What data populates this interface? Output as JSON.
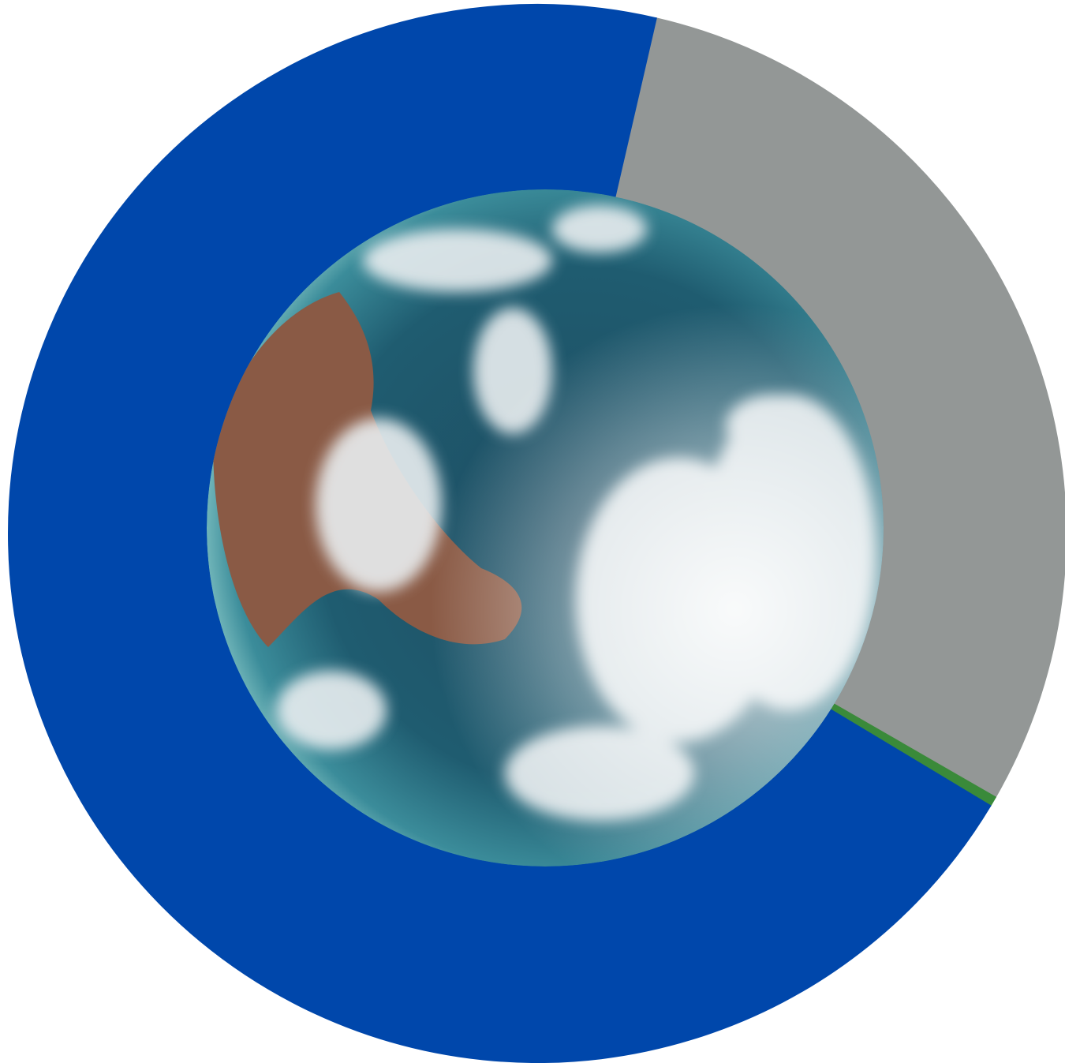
{
  "chart_data": {
    "type": "pie",
    "values": [
      29.7,
      0.3,
      70
    ],
    "colors": [
      "#939796",
      "#3a8a3a",
      "#0047ab"
    ],
    "startangle": 13,
    "direction": "clockwise"
  }
}
